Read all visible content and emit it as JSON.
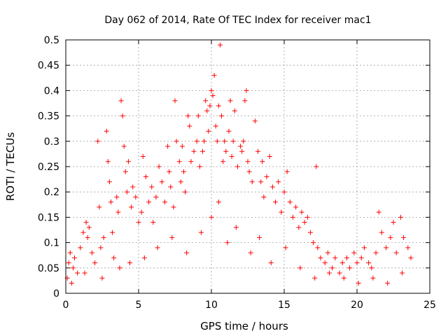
{
  "chart_data": {
    "type": "scatter",
    "title": "Day 062 of 2014, Rate Of TEC Index for receiver mac1",
    "xlabel": "GPS time / hours",
    "ylabel": "ROTI / TECUs",
    "xlim": [
      0,
      25
    ],
    "ylim": [
      0,
      0.5
    ],
    "xticks": [
      0,
      5,
      10,
      15,
      20,
      25
    ],
    "xtick_labels": [
      "0",
      "5",
      "10",
      "15",
      "20",
      "25"
    ],
    "yticks": [
      0,
      0.05,
      0.1,
      0.15,
      0.2,
      0.25,
      0.3,
      0.35,
      0.4,
      0.45,
      0.5
    ],
    "ytick_labels": [
      "0",
      "0.05",
      "0.1",
      "0.15",
      "0.2",
      "0.25",
      "0.3",
      "0.35",
      "0.4",
      "0.45",
      "0.5"
    ],
    "grid": true,
    "marker": "+",
    "color": "#ff0000",
    "series": [
      {
        "name": "ROTI",
        "x": [
          0.1,
          0.2,
          0.3,
          0.5,
          0.6,
          0.8,
          1.0,
          1.2,
          1.4,
          1.5,
          1.6,
          1.8,
          2.0,
          2.2,
          2.3,
          2.4,
          2.6,
          2.8,
          2.9,
          3.0,
          3.1,
          3.2,
          3.3,
          3.5,
          3.6,
          3.8,
          3.9,
          4.0,
          4.1,
          4.2,
          4.3,
          4.5,
          4.6,
          4.8,
          5.0,
          5.2,
          5.3,
          5.5,
          5.7,
          5.9,
          6.0,
          6.2,
          6.4,
          6.6,
          6.8,
          7.0,
          7.1,
          7.2,
          7.4,
          7.5,
          7.6,
          7.8,
          7.9,
          8.0,
          8.1,
          8.2,
          8.4,
          8.5,
          8.6,
          8.8,
          9.0,
          9.1,
          9.2,
          9.4,
          9.5,
          9.6,
          9.7,
          9.8,
          9.9,
          10.0,
          10.1,
          10.2,
          10.3,
          10.4,
          10.5,
          10.6,
          10.7,
          10.8,
          10.9,
          11.0,
          11.2,
          11.3,
          11.4,
          11.5,
          11.6,
          11.8,
          12.0,
          12.1,
          12.2,
          12.3,
          12.4,
          12.5,
          12.6,
          12.8,
          13.0,
          13.2,
          13.4,
          13.5,
          13.6,
          13.8,
          14.0,
          14.2,
          14.4,
          14.6,
          14.8,
          15.0,
          15.2,
          15.4,
          15.6,
          15.8,
          16.0,
          16.2,
          16.4,
          16.6,
          16.8,
          17.0,
          17.2,
          17.3,
          17.5,
          17.8,
          18.0,
          18.3,
          18.5,
          18.8,
          19.0,
          19.3,
          19.5,
          19.8,
          20.0,
          20.3,
          20.5,
          20.8,
          21.0,
          21.3,
          21.5,
          21.7,
          22.0,
          22.3,
          22.5,
          22.7,
          23.0,
          23.2,
          23.5,
          23.7,
          0.4,
          1.3,
          2.5,
          3.7,
          4.4,
          5.4,
          6.3,
          7.3,
          8.3,
          9.3,
          10.0,
          10.5,
          11.1,
          11.7,
          12.7,
          13.3,
          14.1,
          15.1,
          16.1,
          17.1,
          18.1,
          19.1,
          20.1,
          21.1,
          22.1,
          23.1
        ],
        "y": [
          0.03,
          0.06,
          0.08,
          0.05,
          0.07,
          0.04,
          0.09,
          0.12,
          0.14,
          0.11,
          0.13,
          0.08,
          0.06,
          0.3,
          0.17,
          0.09,
          0.11,
          0.32,
          0.26,
          0.22,
          0.18,
          0.12,
          0.07,
          0.19,
          0.16,
          0.38,
          0.35,
          0.29,
          0.24,
          0.2,
          0.26,
          0.17,
          0.21,
          0.19,
          0.14,
          0.16,
          0.27,
          0.23,
          0.18,
          0.21,
          0.14,
          0.19,
          0.25,
          0.22,
          0.18,
          0.29,
          0.24,
          0.21,
          0.17,
          0.38,
          0.3,
          0.26,
          0.22,
          0.29,
          0.24,
          0.2,
          0.35,
          0.33,
          0.26,
          0.28,
          0.3,
          0.35,
          0.25,
          0.28,
          0.3,
          0.38,
          0.36,
          0.32,
          0.37,
          0.4,
          0.39,
          0.43,
          0.33,
          0.3,
          0.37,
          0.49,
          0.35,
          0.26,
          0.3,
          0.28,
          0.32,
          0.38,
          0.27,
          0.3,
          0.36,
          0.25,
          0.29,
          0.28,
          0.3,
          0.38,
          0.4,
          0.26,
          0.24,
          0.22,
          0.34,
          0.28,
          0.22,
          0.26,
          0.19,
          0.23,
          0.27,
          0.21,
          0.18,
          0.22,
          0.16,
          0.2,
          0.24,
          0.18,
          0.15,
          0.17,
          0.13,
          0.16,
          0.14,
          0.15,
          0.12,
          0.1,
          0.25,
          0.09,
          0.07,
          0.06,
          0.08,
          0.05,
          0.07,
          0.04,
          0.06,
          0.07,
          0.05,
          0.08,
          0.06,
          0.07,
          0.09,
          0.06,
          0.05,
          0.08,
          0.16,
          0.12,
          0.09,
          0.11,
          0.14,
          0.08,
          0.15,
          0.11,
          0.09,
          0.07,
          0.02,
          0.04,
          0.03,
          0.05,
          0.06,
          0.07,
          0.09,
          0.11,
          0.08,
          0.12,
          0.15,
          0.18,
          0.1,
          0.13,
          0.08,
          0.11,
          0.06,
          0.09,
          0.05,
          0.03,
          0.04,
          0.03,
          0.02,
          0.03,
          0.02,
          0.04
        ]
      }
    ]
  }
}
